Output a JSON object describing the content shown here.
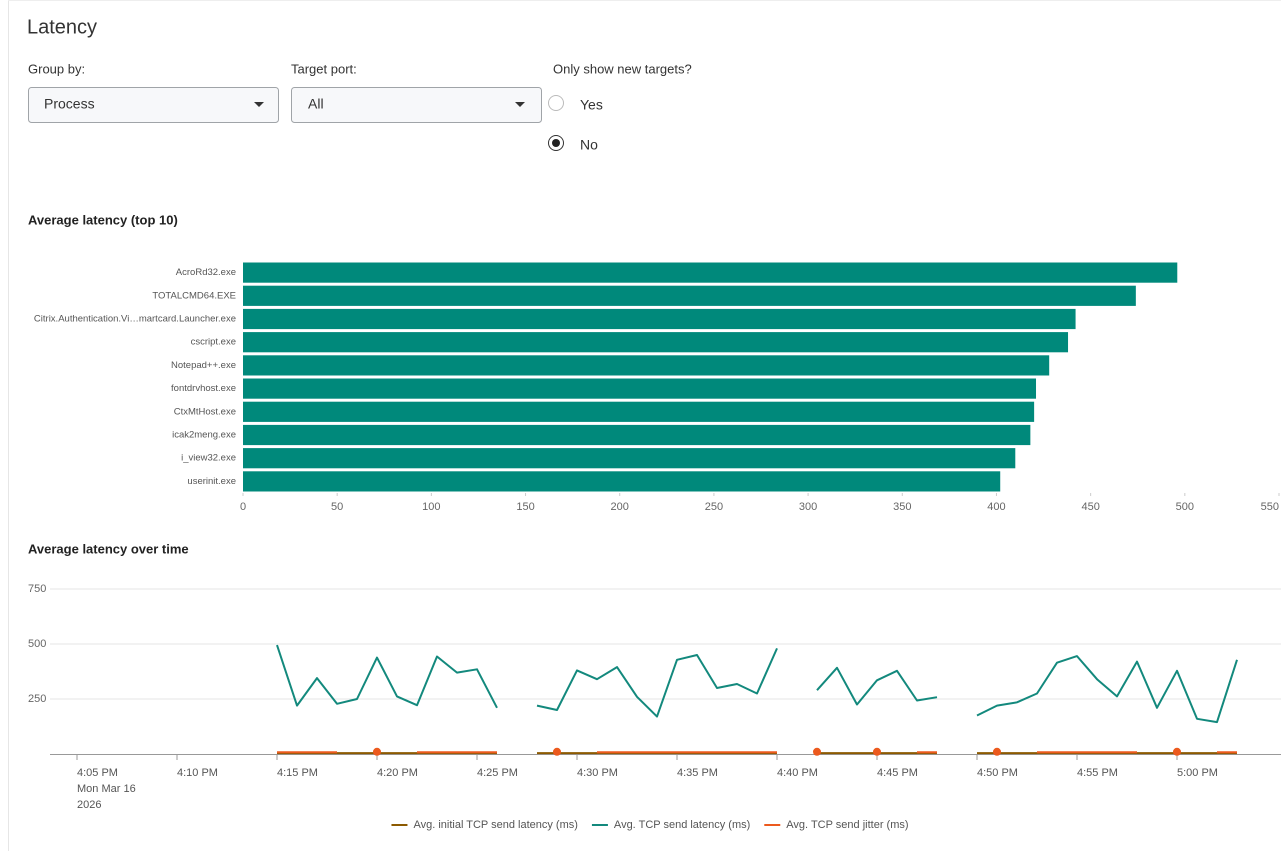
{
  "header": {
    "title": "Latency"
  },
  "controls": {
    "group_by": {
      "label": "Group by:",
      "value": "Process"
    },
    "target_port": {
      "label": "Target port:",
      "value": "All"
    },
    "new_targets": {
      "label": "Only show new targets?",
      "options": [
        "Yes",
        "No"
      ],
      "selected": "No"
    }
  },
  "chart_data": [
    {
      "type": "bar",
      "horizontal": true,
      "title": "Average latency (top 10)",
      "categories": [
        "AcroRd32.exe",
        "TOTALCMD64.EXE",
        "Citrix.Authentication.Vi…martcard.Launcher.exe",
        "cscript.exe",
        "Notepad++.exe",
        "fontdrvhost.exe",
        "CtxMtHost.exe",
        "icak2meng.exe",
        "i_view32.exe",
        "userinit.exe"
      ],
      "values": [
        496,
        474,
        442,
        438,
        428,
        421,
        420,
        418,
        410,
        402
      ],
      "color": "#00897b",
      "xlim": [
        0,
        550
      ],
      "xticks": [
        0,
        50,
        100,
        150,
        200,
        250,
        300,
        350,
        400,
        450,
        500,
        550
      ]
    },
    {
      "type": "line",
      "title": "Average latency over time",
      "x": [
        "2026-03-16T16:15",
        "2026-03-16T16:16",
        "2026-03-16T16:17",
        "2026-03-16T16:18",
        "2026-03-16T16:19",
        "2026-03-16T16:20",
        "2026-03-16T16:21",
        "2026-03-16T16:22",
        "2026-03-16T16:23",
        "2026-03-16T16:24",
        "2026-03-16T16:25",
        "2026-03-16T16:26",
        "2026-03-16T16:27",
        "2026-03-16T16:28",
        "2026-03-16T16:29",
        "2026-03-16T16:30",
        "2026-03-16T16:31",
        "2026-03-16T16:32",
        "2026-03-16T16:33",
        "2026-03-16T16:34",
        "2026-03-16T16:35",
        "2026-03-16T16:36",
        "2026-03-16T16:37",
        "2026-03-16T16:38",
        "2026-03-16T16:39",
        "2026-03-16T16:40",
        "2026-03-16T16:41",
        "2026-03-16T16:42",
        "2026-03-16T16:43",
        "2026-03-16T16:44",
        "2026-03-16T16:45",
        "2026-03-16T16:46",
        "2026-03-16T16:47",
        "2026-03-16T16:48",
        "2026-03-16T16:49",
        "2026-03-16T16:50",
        "2026-03-16T16:51",
        "2026-03-16T16:52",
        "2026-03-16T16:53",
        "2026-03-16T16:54",
        "2026-03-16T16:55",
        "2026-03-16T16:56",
        "2026-03-16T16:57",
        "2026-03-16T16:58",
        "2026-03-16T16:59",
        "2026-03-16T17:00",
        "2026-03-16T17:01",
        "2026-03-16T17:02",
        "2026-03-16T17:03"
      ],
      "series": [
        {
          "name": "Avg. initial TCP send latency (ms)",
          "color": "#8c5a00",
          "values": [
            4,
            4,
            4,
            4,
            4,
            4,
            4,
            4,
            4,
            4,
            4,
            4,
            null,
            4,
            4,
            4,
            4,
            4,
            4,
            4,
            4,
            4,
            4,
            4,
            4,
            4,
            null,
            4,
            4,
            4,
            4,
            4,
            4,
            4,
            null,
            4,
            4,
            4,
            4,
            4,
            4,
            4,
            4,
            4,
            4,
            4,
            4,
            4,
            4
          ]
        },
        {
          "name": "Avg. TCP send latency (ms)",
          "color": "#13897d",
          "values": [
            495,
            220,
            345,
            228,
            250,
            438,
            262,
            222,
            443,
            370,
            385,
            210,
            null,
            220,
            200,
            380,
            340,
            395,
            260,
            170,
            428,
            450,
            300,
            318,
            275,
            480,
            null,
            290,
            392,
            225,
            335,
            378,
            243,
            258,
            null,
            175,
            220,
            235,
            275,
            415,
            445,
            340,
            262,
            420,
            210,
            378,
            160,
            145,
            428
          ]
        },
        {
          "name": "Avg. TCP send jitter (ms)",
          "color": "#ec5a1e",
          "values": [
            8,
            8,
            8,
            8,
            null,
            10,
            null,
            8,
            8,
            8,
            8,
            8,
            null,
            null,
            10,
            null,
            8,
            8,
            8,
            8,
            8,
            8,
            8,
            8,
            8,
            8,
            null,
            10,
            null,
            null,
            10,
            null,
            8,
            8,
            null,
            null,
            10,
            null,
            8,
            8,
            8,
            8,
            8,
            8,
            null,
            10,
            null,
            8,
            8
          ]
        }
      ],
      "xlim": [
        "2026-03-16T16:04",
        "2026-03-16T17:05"
      ],
      "xticks": [
        {
          "value": "2026-03-16T16:05",
          "label": "4:05 PM",
          "sublabel": [
            "Mon Mar 16",
            "2026"
          ]
        },
        {
          "value": "2026-03-16T16:10",
          "label": "4:10 PM"
        },
        {
          "value": "2026-03-16T16:15",
          "label": "4:15 PM"
        },
        {
          "value": "2026-03-16T16:20",
          "label": "4:20 PM"
        },
        {
          "value": "2026-03-16T16:25",
          "label": "4:25 PM"
        },
        {
          "value": "2026-03-16T16:30",
          "label": "4:30 PM"
        },
        {
          "value": "2026-03-16T16:35",
          "label": "4:35 PM"
        },
        {
          "value": "2026-03-16T16:40",
          "label": "4:40 PM"
        },
        {
          "value": "2026-03-16T16:45",
          "label": "4:45 PM"
        },
        {
          "value": "2026-03-16T16:50",
          "label": "4:50 PM"
        },
        {
          "value": "2026-03-16T16:55",
          "label": "4:55 PM"
        },
        {
          "value": "2026-03-16T17:00",
          "label": "5:00 PM"
        }
      ],
      "ylim": [
        0,
        750
      ],
      "yticks": [
        250,
        500,
        750
      ],
      "grid": true,
      "legend": "bottom"
    }
  ]
}
